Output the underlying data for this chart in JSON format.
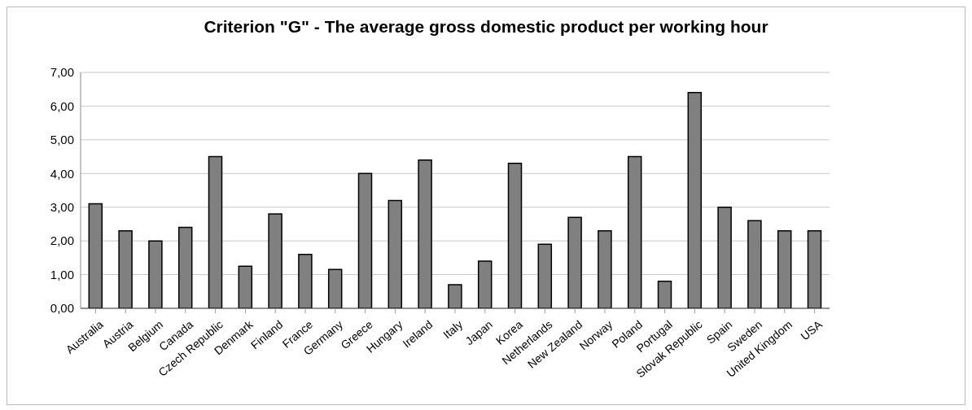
{
  "chart_data": {
    "type": "bar",
    "title": "Criterion \"G\" - The average gross domestic product per working hour",
    "categories": [
      "Australia",
      "Austria",
      "Belgium",
      "Canada",
      "Czech Republic",
      "Denmark",
      "Finland",
      "France",
      "Germany",
      "Greece",
      "Hungary",
      "Ireland",
      "Italy",
      "Japan",
      "Korea",
      "Netherlands",
      "New Zealand",
      "Norway",
      "Poland",
      "Portugal",
      "Slovak Republic",
      "Spain",
      "Sweden",
      "United Kingdom",
      "USA"
    ],
    "values": [
      3.1,
      2.3,
      2.0,
      2.4,
      4.5,
      1.25,
      2.8,
      1.6,
      1.15,
      4.0,
      3.2,
      4.4,
      0.7,
      1.4,
      4.3,
      1.9,
      2.7,
      2.3,
      4.5,
      0.8,
      6.4,
      3.0,
      2.6,
      2.3,
      2.3
    ],
    "color": "#808080",
    "ylim": [
      0,
      7
    ],
    "yticks": [
      {
        "value": 0,
        "label": "0,00"
      },
      {
        "value": 1,
        "label": "1,00"
      },
      {
        "value": 2,
        "label": "2,00"
      },
      {
        "value": 3,
        "label": "3,00"
      },
      {
        "value": 4,
        "label": "4,00"
      },
      {
        "value": 5,
        "label": "5,00"
      },
      {
        "value": 6,
        "label": "6,00"
      },
      {
        "value": 7,
        "label": "7,00"
      }
    ],
    "grid": "y",
    "legend": false
  }
}
